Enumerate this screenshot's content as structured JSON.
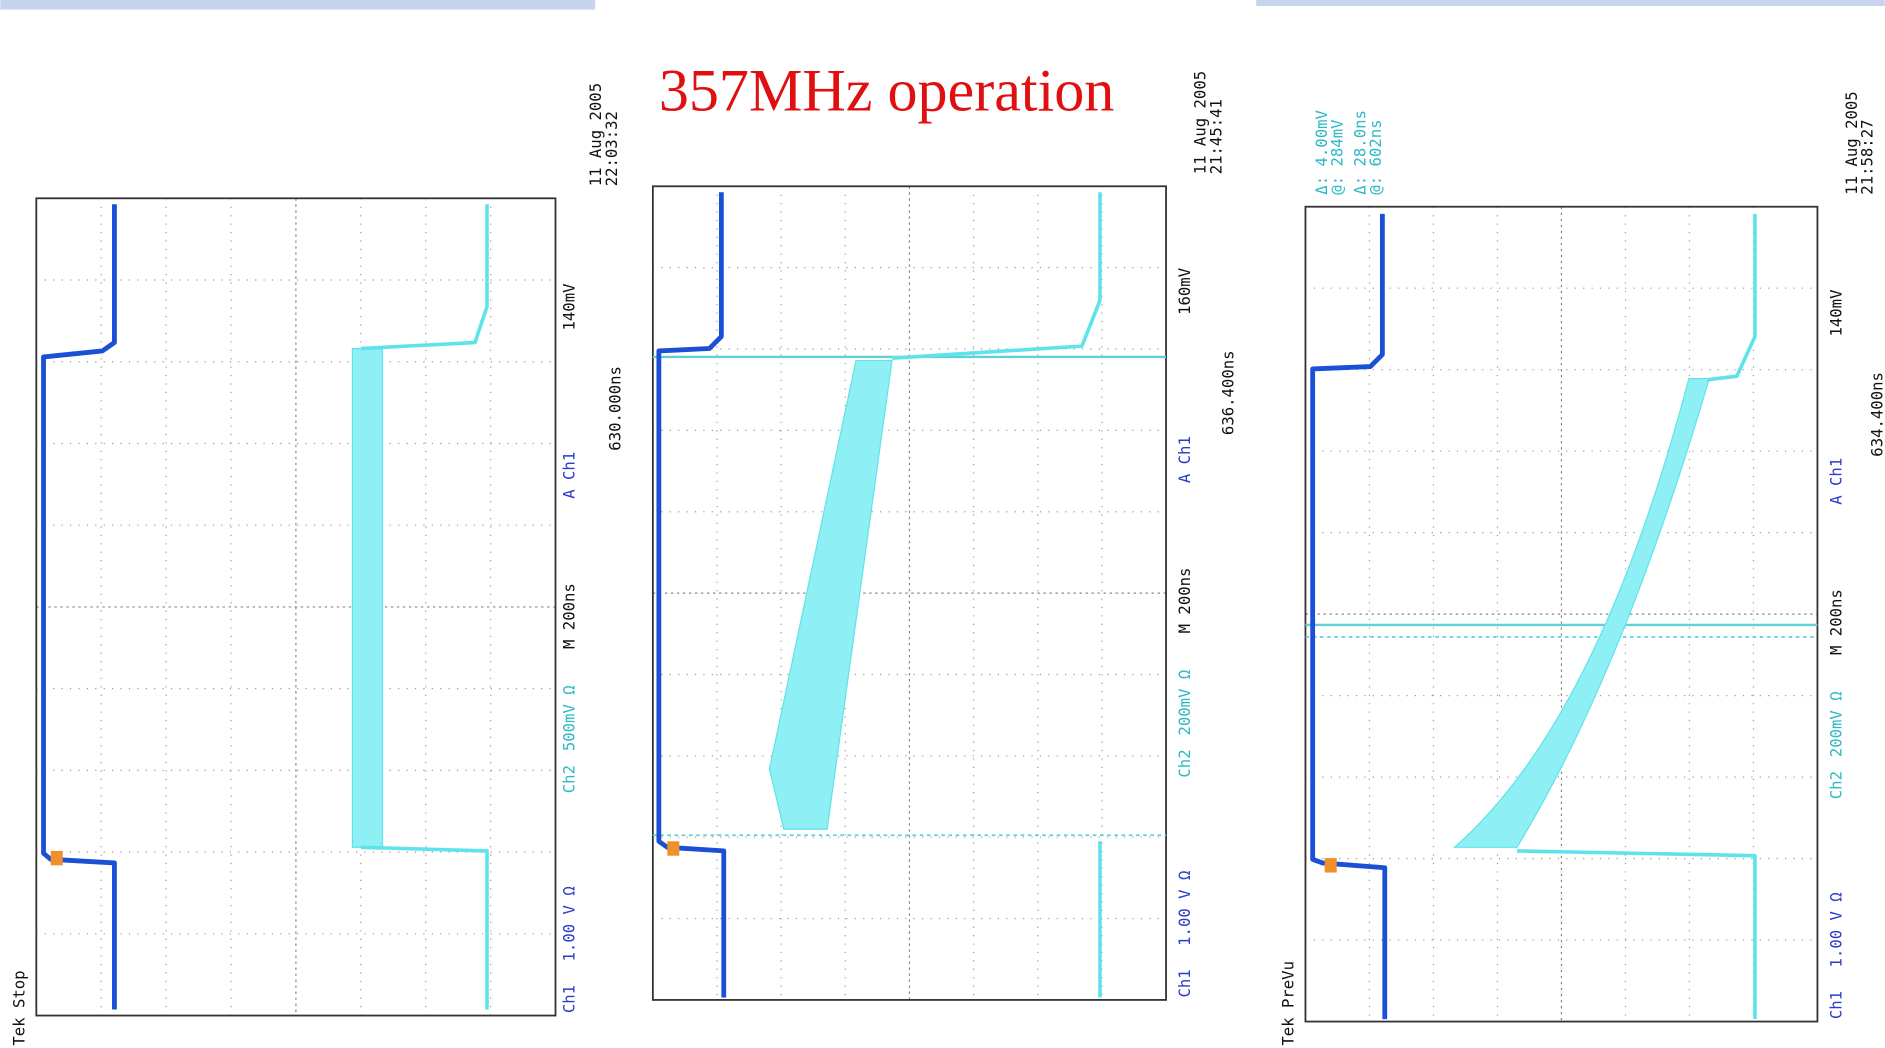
{
  "title": "357MHz operation",
  "scopes": [
    {
      "status": "Tek Stop",
      "ch1": "Ch1",
      "ch1_scale": "1.00 V Ω",
      "ch2": "Ch2",
      "ch2_scale": "500mV Ω",
      "timebase": "M 200ns",
      "trigger": "A Ch1",
      "trigger_level": "140mV",
      "position": "630.000ns",
      "date": "11 Aug 2005",
      "time": "22:03:32"
    },
    {
      "ch1": "Ch1",
      "ch1_scale": "1.00 V Ω",
      "ch2": "Ch2",
      "ch2_scale": "200mV Ω",
      "timebase": "M 200ns",
      "trigger": "A Ch1",
      "trigger_level": "160mV",
      "position": "636.400ns",
      "date": "11 Aug 2005",
      "time": "21:45:41"
    },
    {
      "status": "Tek PreVu",
      "ch1": "Ch1",
      "ch1_scale": "1.00 V Ω",
      "ch2": "Ch2",
      "ch2_scale": "200mV Ω",
      "timebase": "M 200ns",
      "trigger": "A Ch1",
      "trigger_level": "140mV",
      "position": "634.400ns",
      "date": "11 Aug 2005",
      "time": "21:58:27",
      "cursors": [
        "Δ: 4.00mV",
        "@: 284mV",
        "Δ: 28.0ns",
        "@: 602ns"
      ]
    }
  ]
}
